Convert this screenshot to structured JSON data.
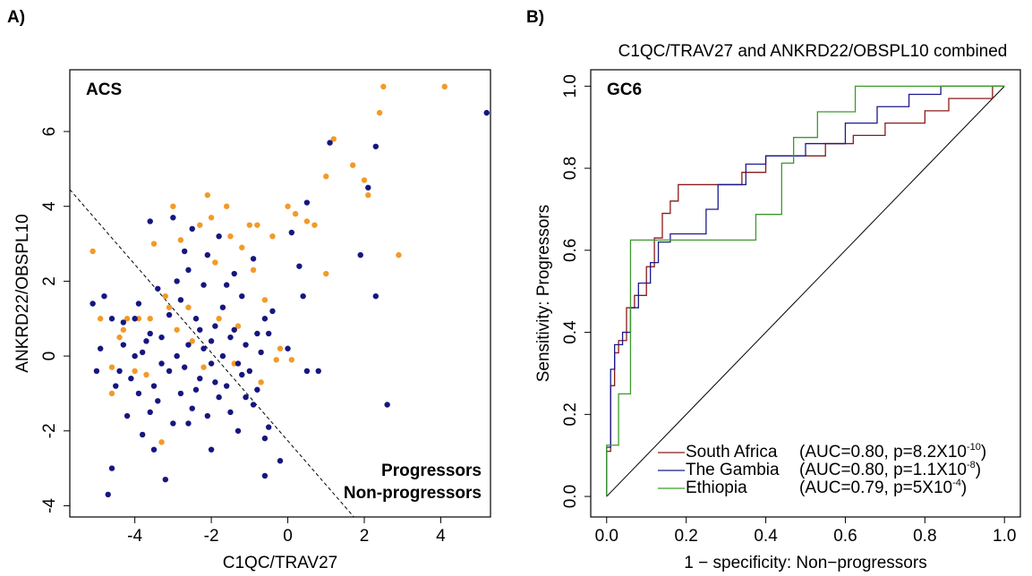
{
  "chart_data": [
    {
      "type": "scatter",
      "panel_label": "A)",
      "annotation": "ACS",
      "x_label": "C1QC/TRAV27",
      "y_label": "ANKRD22/OBSPL10",
      "xlim": [
        -5.7,
        5.3
      ],
      "ylim": [
        -4.3,
        7.65
      ],
      "xticks": [
        -4,
        -2,
        0,
        2,
        4
      ],
      "yticks": [
        -4,
        -2,
        0,
        2,
        4,
        6
      ],
      "legend": "bottom-right",
      "reference_line": {
        "x": [
          -5.7,
          1.72
        ],
        "y": [
          4.45,
          -4.29
        ]
      },
      "series": [
        {
          "name": "Progressors",
          "color": "#f39a26",
          "x": [
            -5.1,
            -4.9,
            -4.6,
            -4.4,
            -4.3,
            -4.2,
            -4.0,
            -3.9,
            -3.6,
            -3.5,
            -3.3,
            -3.2,
            -3.0,
            -2.8,
            -2.6,
            -2.5,
            -2.3,
            -2.1,
            -2.0,
            -1.9,
            -1.8,
            -1.6,
            -1.5,
            -1.3,
            -1.0,
            -0.9,
            -0.8,
            -0.7,
            -0.6,
            -0.4,
            -0.3,
            0.0,
            0.2,
            0.5,
            0.7,
            1.0,
            1.0,
            1.2,
            1.7,
            2.0,
            2.1,
            2.4,
            2.5,
            2.9,
            4.1,
            -2.9,
            -4.6,
            -1.2,
            -3.1,
            -2.2,
            -3.7,
            -1.4,
            -0.2,
            0.1
          ],
          "values": [
            2.8,
            1.0,
            -1.0,
            0.5,
            0.7,
            1.0,
            -0.4,
            1.0,
            1.0,
            3.0,
            -2.3,
            1.6,
            4.0,
            3.1,
            1.3,
            0.4,
            3.5,
            4.3,
            3.7,
            2.5,
            1.0,
            4.0,
            3.2,
            0.8,
            3.5,
            2.3,
            3.5,
            -0.7,
            1.5,
            3.2,
            -0.1,
            4.0,
            3.8,
            3.6,
            3.5,
            2.2,
            4.8,
            5.8,
            5.1,
            4.7,
            4.3,
            6.5,
            7.2,
            2.7,
            7.2,
            0.7,
            -0.3,
            2.9,
            1.3,
            -0.3,
            -0.5,
            -0.2,
            0.2,
            -0.1
          ]
        },
        {
          "name": "Non-progressors",
          "color": "#16167f",
          "x": [
            5.2,
            2.6,
            2.3,
            2.3,
            2.1,
            1.9,
            1.1,
            0.8,
            0.5,
            0.5,
            0.4,
            0.3,
            0.1,
            0.0,
            -0.2,
            -0.4,
            -0.6,
            -0.5,
            -0.6,
            -0.8,
            -0.6,
            -0.9,
            -1.0,
            -1.1,
            -1.2,
            -1.3,
            -1.4,
            -1.5,
            -1.6,
            -1.7,
            -1.8,
            -1.9,
            -2.0,
            -2.1,
            -2.2,
            -2.3,
            -2.4,
            -2.5,
            -2.6,
            -2.7,
            -2.8,
            -2.9,
            -3.0,
            -3.1,
            -3.2,
            -3.3,
            -3.4,
            -3.5,
            -3.6,
            -3.7,
            -3.8,
            -3.9,
            -4.0,
            -4.1,
            -4.2,
            -4.3,
            -4.4,
            -4.5,
            -4.6,
            -4.7,
            -4.8,
            -4.9,
            -5.0,
            -5.1,
            -2.5,
            -1.8,
            -2.9,
            -3.6,
            -2.2,
            -1.6,
            -1.1,
            -2.6,
            -3.3,
            -1.3,
            -2.0,
            -3.9,
            -4.3,
            -2.8,
            -1.4,
            -0.9,
            -0.7,
            -2.3,
            -3.1,
            -1.9,
            -2.7,
            -3.5,
            -4.0,
            -1.5,
            -0.8,
            -3.0,
            -2.4,
            -2.1,
            -3.4,
            -1.7,
            -0.5,
            -2.6,
            -3.8,
            -1.2,
            -4.6,
            -2.0,
            -3.6
          ],
          "values": [
            6.5,
            -1.3,
            5.6,
            1.6,
            4.5,
            2.7,
            5.7,
            -0.4,
            -0.4,
            4.1,
            1.6,
            2.4,
            3.3,
            0.2,
            -2.8,
            1.2,
            -3.2,
            -1.9,
            -2.2,
            0.6,
            1.0,
            -1.3,
            -0.4,
            0.3,
            1.6,
            -0.2,
            2.2,
            0.5,
            -0.8,
            1.3,
            -1.1,
            0.8,
            -0.2,
            2.7,
            1.9,
            -0.6,
            1.0,
            -1.4,
            0.3,
            2.8,
            -1.0,
            0.0,
            3.7,
            -0.4,
            -3.3,
            0.5,
            1.8,
            -0.8,
            -1.5,
            0.4,
            -2.1,
            1.4,
            0.0,
            -0.6,
            -1.6,
            0.9,
            -0.4,
            -0.8,
            -3.0,
            -3.7,
            1.6,
            0.2,
            -0.4,
            1.4,
            3.4,
            3.2,
            2.0,
            0.6,
            0.2,
            1.9,
            -1.1,
            -1.8,
            -0.2,
            -2.0,
            -2.5,
            -1.0,
            0.3,
            1.5,
            0.7,
            2.6,
            0.1,
            0.7,
            1.1,
            -0.7,
            -0.3,
            -2.5,
            1.0,
            -1.5,
            -0.9,
            -1.8,
            -0.9,
            -1.6,
            -1.2,
            0.0,
            0.6,
            2.3,
            0.1,
            -0.5,
            1.0,
            0.4,
            3.6
          ]
        }
      ]
    },
    {
      "type": "line",
      "panel_label": "B)",
      "title": "C1QC/TRAV27 and ANKRD22/OBSPL10 combined",
      "annotation": "GC6",
      "x_label": "1 − specificity: Non−progressors",
      "y_label": "Sensitivity: Progressors",
      "xlim": [
        -0.04,
        1.04
      ],
      "ylim": [
        -0.05,
        1.04
      ],
      "xticks": [
        {
          "value": 0,
          "label": "0.0"
        },
        0.2,
        0.4,
        0.6,
        0.8,
        {
          "value": 1,
          "label": "1.0"
        }
      ],
      "yticks": [
        {
          "value": 0,
          "label": "0.0"
        },
        0.2,
        0.4,
        0.6,
        0.8,
        {
          "value": 1,
          "label": "1.0"
        }
      ],
      "legend": "bottom-right",
      "reference_line": {
        "x": [
          0,
          1
        ],
        "y": [
          0,
          1
        ]
      },
      "series": [
        {
          "name": "South Africa",
          "color": "#8b1a1a",
          "stat_text": "(AUC=0.80, p=8.2X10",
          "stat_exponent": "-10",
          "stat_close": ")",
          "x": [
            0,
            0,
            0.01,
            0.01,
            0.02,
            0.02,
            0.03,
            0.03,
            0.05,
            0.05,
            0.07,
            0.07,
            0.1,
            0.1,
            0.12,
            0.12,
            0.14,
            0.14,
            0.16,
            0.16,
            0.18,
            0.18,
            0.34,
            0.34,
            0.4,
            0.4,
            0.55,
            0.55,
            0.62,
            0.62,
            0.7,
            0.7,
            0.8,
            0.8,
            0.86,
            0.86,
            0.97,
            0.97,
            1.0
          ],
          "values": [
            0,
            0.11,
            0.11,
            0.27,
            0.27,
            0.35,
            0.35,
            0.38,
            0.38,
            0.46,
            0.46,
            0.49,
            0.49,
            0.56,
            0.56,
            0.63,
            0.63,
            0.69,
            0.69,
            0.72,
            0.72,
            0.76,
            0.76,
            0.79,
            0.79,
            0.83,
            0.83,
            0.86,
            0.86,
            0.88,
            0.88,
            0.91,
            0.91,
            0.94,
            0.94,
            0.97,
            0.97,
            1.0,
            1.0
          ]
        },
        {
          "name": "The Gambia",
          "color": "#1a1a8c",
          "stat_text": "(AUC=0.80, p=1.1X10",
          "stat_exponent": "-8",
          "stat_close": ")",
          "x": [
            0,
            0,
            0.01,
            0.01,
            0.02,
            0.02,
            0.04,
            0.04,
            0.06,
            0.06,
            0.08,
            0.08,
            0.11,
            0.11,
            0.13,
            0.13,
            0.16,
            0.16,
            0.25,
            0.25,
            0.28,
            0.28,
            0.35,
            0.35,
            0.4,
            0.4,
            0.5,
            0.5,
            0.6,
            0.6,
            0.68,
            0.68,
            0.76,
            0.76,
            0.84,
            0.84,
            1.0
          ],
          "values": [
            0,
            0.12,
            0.12,
            0.31,
            0.31,
            0.37,
            0.37,
            0.4,
            0.4,
            0.46,
            0.46,
            0.52,
            0.52,
            0.57,
            0.57,
            0.62,
            0.62,
            0.64,
            0.64,
            0.7,
            0.7,
            0.76,
            0.76,
            0.81,
            0.81,
            0.83,
            0.83,
            0.86,
            0.86,
            0.91,
            0.91,
            0.95,
            0.95,
            0.98,
            0.98,
            1.0,
            1.0
          ]
        },
        {
          "name": "Ethiopia",
          "color": "#3c9a2c",
          "stat_text": "(AUC=0.79, p=5X10",
          "stat_exponent": "-4",
          "stat_close": ")",
          "x": [
            0,
            0,
            0.03,
            0.03,
            0.06,
            0.06,
            0.375,
            0.375,
            0.44,
            0.44,
            0.47,
            0.47,
            0.53,
            0.53,
            0.625,
            0.625,
            1.0
          ],
          "values": [
            0,
            0.125,
            0.125,
            0.25,
            0.25,
            0.625,
            0.625,
            0.6875,
            0.6875,
            0.8125,
            0.8125,
            0.875,
            0.875,
            0.9375,
            0.9375,
            1.0,
            1.0
          ]
        }
      ]
    }
  ]
}
